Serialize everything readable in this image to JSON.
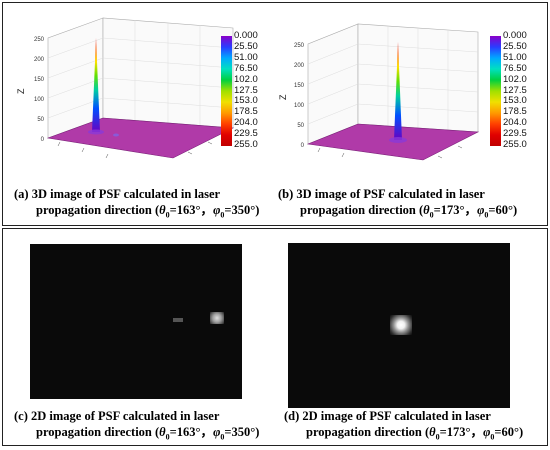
{
  "panels": {
    "a": {
      "caption_line1": "(a) 3D image of PSF calculated in laser",
      "caption_line2_prefix": "propagation direction (",
      "theta_symbol": "θ",
      "theta_value": "=163°",
      "phi_symbol": "φ",
      "phi_value": "=350°)",
      "z_label": "Z",
      "z_ticks": [
        "250",
        "200",
        "150",
        "100",
        "50",
        "0"
      ]
    },
    "b": {
      "caption_line1": "(b) 3D image of PSF calculated in laser",
      "caption_line2_prefix": "propagation direction (",
      "theta_symbol": "θ",
      "theta_value": "=173°",
      "phi_symbol": "φ",
      "phi_value": "=60°)",
      "z_label": "Z",
      "z_ticks": [
        "250",
        "200",
        "150",
        "100",
        "50",
        "0"
      ]
    },
    "c": {
      "caption_line1": "(c) 2D image of PSF calculated in laser",
      "caption_line2_prefix": "propagation direction (",
      "theta_symbol": "θ",
      "theta_value": "=163°",
      "phi_symbol": "φ",
      "phi_value": "=350°)"
    },
    "d": {
      "caption_line1": "(d) 2D image of PSF calculated in laser",
      "caption_line2_prefix": "propagation direction (",
      "theta_symbol": "θ",
      "theta_value": "=173°",
      "phi_symbol": "φ",
      "phi_value": "=60°)"
    }
  },
  "colorbar": {
    "labels": [
      "0.000",
      "25.50",
      "51.00",
      "76.50",
      "102.0",
      "127.5",
      "153.0",
      "178.5",
      "204.0",
      "229.5",
      "255.0"
    ],
    "colors": [
      "#8a00c8",
      "#2a3cff",
      "#00a8ff",
      "#00e0c0",
      "#00d040",
      "#a0e000",
      "#f0e000",
      "#ff9a00",
      "#ff4000",
      "#e00000",
      "#c00000"
    ]
  },
  "subscript_zero": "0",
  "separator": "，"
}
